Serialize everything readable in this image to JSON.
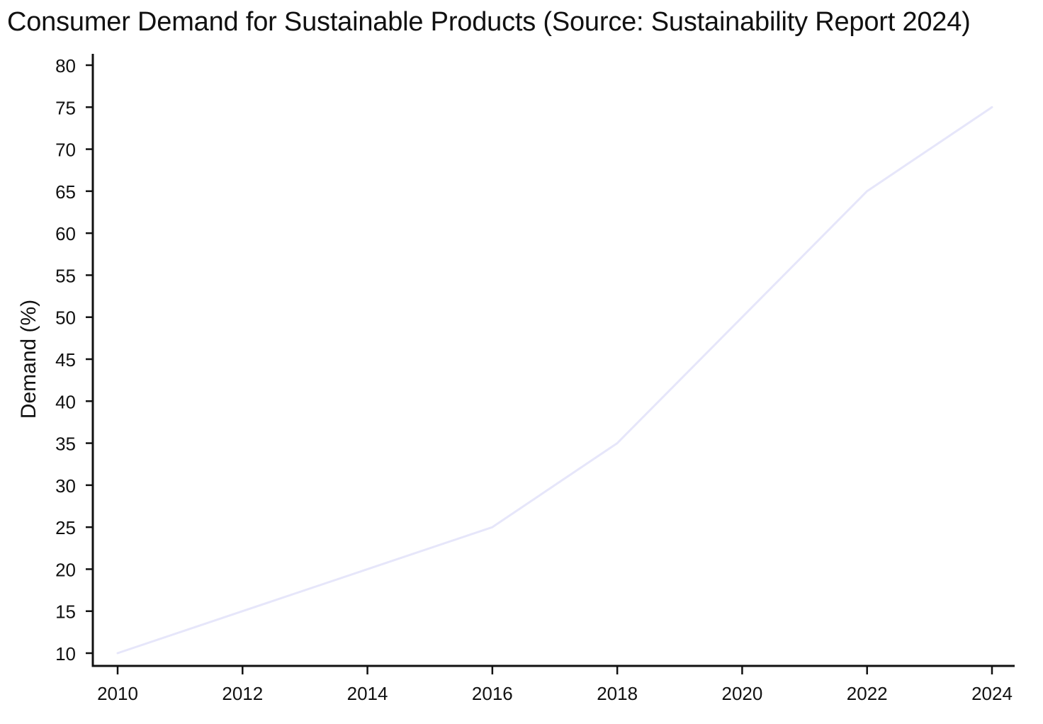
{
  "chart_data": {
    "type": "line",
    "title": "Consumer Demand for Sustainable Products (Source: Sustainability Report 2024)",
    "xlabel": "",
    "ylabel": "Demand (%)",
    "x": [
      2010,
      2012,
      2014,
      2016,
      2018,
      2020,
      2022,
      2024
    ],
    "series": [
      {
        "name": "Demand (%)",
        "values": [
          10,
          15,
          20,
          25,
          35,
          50,
          65,
          75
        ],
        "color": "#e6e6fa"
      }
    ],
    "xticks": [
      "2010",
      "2012",
      "2014",
      "2016",
      "2018",
      "2020",
      "2022",
      "2024"
    ],
    "yticks": [
      "10",
      "15",
      "20",
      "25",
      "30",
      "35",
      "40",
      "45",
      "50",
      "55",
      "60",
      "65",
      "70",
      "75",
      "80"
    ],
    "xlim": [
      2010,
      2024
    ],
    "ylim": [
      10,
      80
    ],
    "grid": false,
    "legend": "none",
    "axis_color": "#111111"
  }
}
